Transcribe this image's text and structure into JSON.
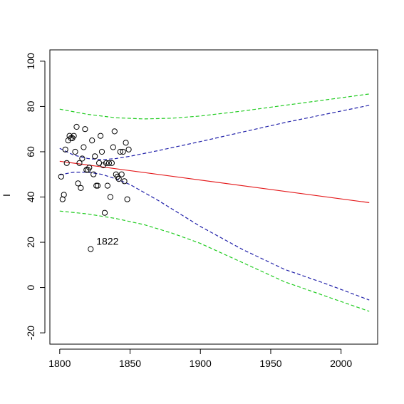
{
  "chart_data": {
    "type": "scatter",
    "title": "",
    "xlabel": "",
    "ylabel": "I",
    "xlim": [
      1793,
      2026
    ],
    "ylim": [
      -25,
      105
    ],
    "xticks": [
      "1800",
      "1850",
      "1900",
      "1950",
      "2000"
    ],
    "yticks": [
      "-20",
      "0",
      "20",
      "40",
      "60",
      "80",
      "100"
    ],
    "grid": false,
    "points": [
      {
        "x": 1801,
        "y": 49
      },
      {
        "x": 1802,
        "y": 39
      },
      {
        "x": 1803,
        "y": 41
      },
      {
        "x": 1804,
        "y": 61
      },
      {
        "x": 1805,
        "y": 55
      },
      {
        "x": 1806,
        "y": 65
      },
      {
        "x": 1807,
        "y": 67
      },
      {
        "x": 1808,
        "y": 66
      },
      {
        "x": 1809,
        "y": 66
      },
      {
        "x": 1810,
        "y": 67
      },
      {
        "x": 1811,
        "y": 60
      },
      {
        "x": 1812,
        "y": 71
      },
      {
        "x": 1813,
        "y": 46
      },
      {
        "x": 1814,
        "y": 55
      },
      {
        "x": 1815,
        "y": 44
      },
      {
        "x": 1816,
        "y": 57
      },
      {
        "x": 1817,
        "y": 62
      },
      {
        "x": 1818,
        "y": 70
      },
      {
        "x": 1819,
        "y": 52
      },
      {
        "x": 1820,
        "y": 52
      },
      {
        "x": 1821,
        "y": 53
      },
      {
        "x": 1822,
        "y": 17
      },
      {
        "x": 1823,
        "y": 65
      },
      {
        "x": 1824,
        "y": 50
      },
      {
        "x": 1825,
        "y": 58
      },
      {
        "x": 1826,
        "y": 45
      },
      {
        "x": 1827,
        "y": 45
      },
      {
        "x": 1828,
        "y": 55
      },
      {
        "x": 1829,
        "y": 67
      },
      {
        "x": 1830,
        "y": 60
      },
      {
        "x": 1831,
        "y": 54
      },
      {
        "x": 1832,
        "y": 33
      },
      {
        "x": 1833,
        "y": 55
      },
      {
        "x": 1834,
        "y": 45
      },
      {
        "x": 1835,
        "y": 55
      },
      {
        "x": 1836,
        "y": 40
      },
      {
        "x": 1837,
        "y": 55
      },
      {
        "x": 1838,
        "y": 62
      },
      {
        "x": 1839,
        "y": 69
      },
      {
        "x": 1840,
        "y": 50
      },
      {
        "x": 1841,
        "y": 49
      },
      {
        "x": 1842,
        "y": 48
      },
      {
        "x": 1843,
        "y": 60
      },
      {
        "x": 1844,
        "y": 50
      },
      {
        "x": 1845,
        "y": 60
      },
      {
        "x": 1846,
        "y": 47
      },
      {
        "x": 1847,
        "y": 64
      },
      {
        "x": 1848,
        "y": 39
      },
      {
        "x": 1849,
        "y": 61
      }
    ],
    "annotations": [
      {
        "text": "1822",
        "x": 1822,
        "y": 17
      }
    ],
    "series": [
      {
        "kind": "fit",
        "color": "#e41a1c",
        "dash": "solid",
        "x": [
          1800,
          2020
        ],
        "y": [
          55.8,
          37.5
        ]
      },
      {
        "kind": "confidence-upper",
        "color": "#2222aa",
        "dash": "dashed",
        "x": [
          1800,
          1810,
          1820,
          1830,
          1840,
          1850,
          1870,
          1900,
          1930,
          1960,
          1990,
          2020
        ],
        "y": [
          61.5,
          58.5,
          57.0,
          56.5,
          57.0,
          58.0,
          60.5,
          64.5,
          68.7,
          72.9,
          76.7,
          80.5
        ]
      },
      {
        "kind": "confidence-lower",
        "color": "#2222aa",
        "dash": "dashed",
        "x": [
          1800,
          1810,
          1820,
          1830,
          1840,
          1850,
          1870,
          1900,
          1930,
          1960,
          1990,
          2020
        ],
        "y": [
          49.8,
          51.0,
          51.0,
          50.0,
          48.0,
          45.5,
          38.5,
          27.0,
          16.8,
          8.0,
          1.5,
          -5.5
        ]
      },
      {
        "kind": "prediction-upper",
        "color": "#22cc22",
        "dash": "dashed",
        "x": [
          1800,
          1820,
          1840,
          1860,
          1880,
          1900,
          1930,
          1960,
          1990,
          2020
        ],
        "y": [
          78.8,
          76.5,
          75.0,
          74.5,
          74.8,
          75.8,
          78.0,
          80.5,
          83.0,
          85.5
        ]
      },
      {
        "kind": "prediction-lower",
        "color": "#22cc22",
        "dash": "dashed",
        "x": [
          1800,
          1820,
          1840,
          1860,
          1880,
          1900,
          1930,
          1960,
          1990,
          2020
        ],
        "y": [
          33.8,
          32.5,
          30.5,
          27.8,
          24.0,
          19.5,
          11.0,
          2.5,
          -4.0,
          -10.5
        ]
      }
    ]
  }
}
